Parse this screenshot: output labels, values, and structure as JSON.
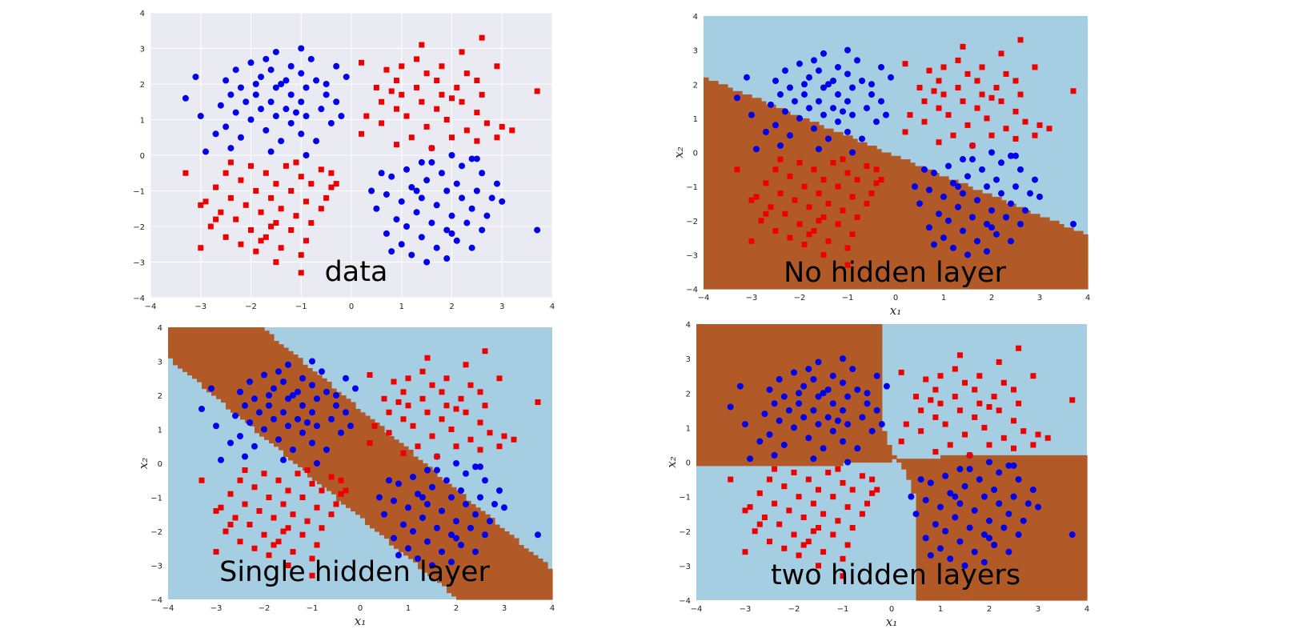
{
  "colors": {
    "class_a": "#0000ee",
    "class_b": "#ee0000",
    "region_a": "#a6cee3",
    "region_b": "#b15a28",
    "panel_bg": "#eaeaf2",
    "grid": "#ffffff"
  },
  "icons": {
    "class_a_marker": "circle-marker",
    "class_b_marker": "square-marker"
  },
  "chart_data": [
    {
      "type": "scatter",
      "caption": "data",
      "xlabel": "",
      "ylabel": "",
      "xlim": [
        -4,
        4
      ],
      "ylim": [
        -4,
        4
      ],
      "xticks": [
        "−4",
        "−3",
        "−2",
        "−1",
        "0",
        "1",
        "2",
        "3",
        "4"
      ],
      "yticks": [
        "−4",
        "−3",
        "−2",
        "−1",
        "0",
        "1",
        "2",
        "3",
        "4"
      ],
      "grid": true,
      "background": "seaborn-gray",
      "decision_boundary": "none"
    },
    {
      "type": "scatter",
      "caption": "No hidden layer",
      "xlabel": "x₁",
      "ylabel": "x₂",
      "xlim": [
        -4,
        4
      ],
      "ylim": [
        -4,
        4
      ],
      "xticks": [
        "−4",
        "−3",
        "−2",
        "−1",
        "0",
        "1",
        "2",
        "3",
        "4"
      ],
      "yticks": [
        "−4",
        "−3",
        "−2",
        "−1",
        "0",
        "1",
        "2",
        "3",
        "4"
      ],
      "grid": false,
      "decision_boundary": "linear"
    },
    {
      "type": "scatter",
      "caption": "Single hidden layer",
      "xlabel": "x₁",
      "ylabel": "x₂",
      "xlim": [
        -4,
        4
      ],
      "ylim": [
        -4,
        4
      ],
      "xticks": [
        "−4",
        "−3",
        "−2",
        "−1",
        "0",
        "1",
        "2",
        "3",
        "4"
      ],
      "yticks": [
        "−4",
        "−3",
        "−2",
        "−1",
        "0",
        "1",
        "2",
        "3",
        "4"
      ],
      "grid": false,
      "decision_boundary": "diagonal-band"
    },
    {
      "type": "scatter",
      "caption": "two hidden layers",
      "xlabel": "x₁",
      "ylabel": "x₂",
      "xlim": [
        -4,
        4
      ],
      "ylim": [
        -4,
        4
      ],
      "xticks": [
        "−4",
        "−3",
        "−2",
        "−1",
        "0",
        "1",
        "2",
        "3",
        "4"
      ],
      "yticks": [
        "−4",
        "−3",
        "−2",
        "−1",
        "0",
        "1",
        "2",
        "3",
        "4"
      ],
      "grid": false,
      "decision_boundary": "xor-quadrants"
    }
  ],
  "points": {
    "class_a_circles": [
      [
        -1.0,
        3.0
      ],
      [
        -1.5,
        2.9
      ],
      [
        -0.8,
        2.7
      ],
      [
        -2.0,
        2.6
      ],
      [
        -1.2,
        2.5
      ],
      [
        -0.3,
        2.5
      ],
      [
        -1.6,
        2.4
      ],
      [
        -2.3,
        2.4
      ],
      [
        -1.0,
        2.3
      ],
      [
        -2.5,
        2.1
      ],
      [
        -1.8,
        2.2
      ],
      [
        -1.3,
        2.1
      ],
      [
        -0.7,
        2.1
      ],
      [
        -2.2,
        1.9
      ],
      [
        -1.5,
        1.9
      ],
      [
        -0.9,
        1.9
      ],
      [
        -2.4,
        1.7
      ],
      [
        -1.9,
        1.7
      ],
      [
        -1.2,
        1.7
      ],
      [
        -0.5,
        1.7
      ],
      [
        -3.3,
        1.6
      ],
      [
        -2.1,
        1.5
      ],
      [
        -1.6,
        1.5
      ],
      [
        -1.0,
        1.5
      ],
      [
        -0.3,
        1.5
      ],
      [
        -2.6,
        1.4
      ],
      [
        -1.8,
        1.3
      ],
      [
        -1.3,
        1.3
      ],
      [
        -0.6,
        1.3
      ],
      [
        -2.3,
        1.2
      ],
      [
        -1.5,
        1.1
      ],
      [
        -0.9,
        1.1
      ],
      [
        -2.0,
        1.0
      ],
      [
        -1.2,
        0.9
      ],
      [
        -0.4,
        0.9
      ],
      [
        -2.5,
        0.8
      ],
      [
        -1.7,
        0.7
      ],
      [
        -1.0,
        0.6
      ],
      [
        -2.2,
        0.5
      ],
      [
        -1.4,
        0.4
      ],
      [
        -0.7,
        0.4
      ],
      [
        -2.4,
        0.2
      ],
      [
        -1.6,
        0.1
      ],
      [
        -0.9,
        0.0
      ],
      [
        -3.0,
        1.1
      ],
      [
        -3.1,
        2.2
      ],
      [
        -2.9,
        0.1
      ],
      [
        -1.9,
        2.0
      ],
      [
        -1.1,
        1.2
      ],
      [
        -0.2,
        1.1
      ],
      [
        -1.4,
        2.0
      ],
      [
        -2.7,
        0.6
      ],
      [
        -0.5,
        2.0
      ],
      [
        -1.7,
        2.7
      ],
      [
        -0.1,
        2.2
      ],
      [
        1.6,
        0.2
      ],
      [
        2.0,
        0.0
      ],
      [
        2.4,
        -0.1
      ],
      [
        1.4,
        -0.2
      ],
      [
        2.2,
        -0.3
      ],
      [
        1.1,
        -0.4
      ],
      [
        1.8,
        -0.5
      ],
      [
        2.6,
        -0.5
      ],
      [
        0.8,
        -0.6
      ],
      [
        1.5,
        -0.7
      ],
      [
        2.1,
        -0.8
      ],
      [
        2.9,
        -0.8
      ],
      [
        1.2,
        -0.9
      ],
      [
        1.9,
        -1.0
      ],
      [
        2.5,
        -1.0
      ],
      [
        0.7,
        -1.1
      ],
      [
        1.4,
        -1.2
      ],
      [
        2.2,
        -1.2
      ],
      [
        3.0,
        -1.3
      ],
      [
        1.0,
        -1.3
      ],
      [
        1.7,
        -1.4
      ],
      [
        2.4,
        -1.5
      ],
      [
        0.5,
        -1.5
      ],
      [
        1.3,
        -1.6
      ],
      [
        2.0,
        -1.7
      ],
      [
        2.7,
        -1.7
      ],
      [
        0.9,
        -1.8
      ],
      [
        1.6,
        -1.9
      ],
      [
        2.3,
        -1.9
      ],
      [
        1.1,
        -2.0
      ],
      [
        1.9,
        -2.1
      ],
      [
        2.6,
        -2.1
      ],
      [
        0.7,
        -2.2
      ],
      [
        1.4,
        -2.3
      ],
      [
        2.1,
        -2.4
      ],
      [
        1.0,
        -2.5
      ],
      [
        1.7,
        -2.6
      ],
      [
        2.4,
        -2.6
      ],
      [
        1.2,
        -2.8
      ],
      [
        1.9,
        -2.9
      ],
      [
        1.5,
        -3.0
      ],
      [
        3.7,
        -2.1
      ],
      [
        0.6,
        -0.5
      ],
      [
        2.8,
        -1.2
      ],
      [
        0.4,
        -1.0
      ],
      [
        1.6,
        -0.2
      ],
      [
        0.8,
        -2.7
      ],
      [
        2.0,
        -2.2
      ],
      [
        1.3,
        -1.0
      ],
      [
        2.5,
        -0.1
      ]
    ],
    "class_b_squares": [
      [
        1.4,
        3.1
      ],
      [
        2.6,
        3.3
      ],
      [
        2.2,
        2.9
      ],
      [
        0.2,
        2.6
      ],
      [
        1.0,
        2.5
      ],
      [
        1.8,
        2.5
      ],
      [
        2.9,
        2.5
      ],
      [
        0.7,
        2.4
      ],
      [
        1.5,
        2.3
      ],
      [
        2.3,
        2.3
      ],
      [
        0.9,
        2.1
      ],
      [
        1.7,
        2.1
      ],
      [
        2.5,
        2.1
      ],
      [
        0.5,
        1.9
      ],
      [
        1.3,
        1.9
      ],
      [
        2.1,
        1.9
      ],
      [
        3.7,
        1.8
      ],
      [
        1.0,
        1.7
      ],
      [
        1.8,
        1.7
      ],
      [
        2.6,
        1.7
      ],
      [
        0.6,
        1.5
      ],
      [
        1.4,
        1.5
      ],
      [
        2.2,
        1.5
      ],
      [
        0.9,
        1.3
      ],
      [
        1.7,
        1.3
      ],
      [
        2.5,
        1.2
      ],
      [
        0.3,
        1.1
      ],
      [
        1.1,
        1.1
      ],
      [
        1.9,
        1.0
      ],
      [
        2.7,
        0.9
      ],
      [
        0.6,
        0.9
      ],
      [
        1.5,
        0.8
      ],
      [
        2.3,
        0.7
      ],
      [
        3.0,
        0.8
      ],
      [
        0.2,
        0.6
      ],
      [
        1.2,
        0.5
      ],
      [
        2.0,
        0.5
      ],
      [
        2.9,
        0.5
      ],
      [
        0.9,
        0.3
      ],
      [
        1.6,
        0.2
      ],
      [
        3.2,
        0.7
      ],
      [
        2.5,
        0.4
      ],
      [
        1.3,
        2.7
      ],
      [
        2.0,
        1.6
      ],
      [
        0.8,
        1.8
      ],
      [
        -2.0,
        -0.3
      ],
      [
        -1.3,
        -0.3
      ],
      [
        -0.6,
        -0.4
      ],
      [
        -2.5,
        -0.5
      ],
      [
        -1.7,
        -0.5
      ],
      [
        -1.0,
        -0.6
      ],
      [
        -3.3,
        -0.5
      ],
      [
        -2.2,
        -0.7
      ],
      [
        -1.5,
        -0.8
      ],
      [
        -0.8,
        -0.8
      ],
      [
        -2.7,
        -0.9
      ],
      [
        -1.9,
        -1.0
      ],
      [
        -1.2,
        -1.0
      ],
      [
        -0.4,
        -0.9
      ],
      [
        -2.4,
        -1.2
      ],
      [
        -1.6,
        -1.2
      ],
      [
        -0.9,
        -1.3
      ],
      [
        -3.0,
        -1.4
      ],
      [
        -2.1,
        -1.4
      ],
      [
        -1.4,
        -1.5
      ],
      [
        -0.6,
        -1.5
      ],
      [
        -2.6,
        -1.6
      ],
      [
        -1.8,
        -1.6
      ],
      [
        -1.1,
        -1.7
      ],
      [
        -2.3,
        -1.8
      ],
      [
        -1.5,
        -1.9
      ],
      [
        -0.8,
        -1.9
      ],
      [
        -2.8,
        -2.0
      ],
      [
        -2.0,
        -2.1
      ],
      [
        -1.2,
        -2.1
      ],
      [
        -2.5,
        -2.3
      ],
      [
        -1.7,
        -2.3
      ],
      [
        -0.9,
        -2.4
      ],
      [
        -2.2,
        -2.5
      ],
      [
        -1.4,
        -2.6
      ],
      [
        -3.0,
        -2.6
      ],
      [
        -1.9,
        -2.7
      ],
      [
        -1.0,
        -2.8
      ],
      [
        -1.5,
        -3.0
      ],
      [
        -1.0,
        -3.3
      ],
      [
        -0.4,
        -0.5
      ],
      [
        -2.9,
        -1.3
      ],
      [
        -1.6,
        -2.0
      ],
      [
        -0.5,
        -1.2
      ],
      [
        -2.4,
        -0.2
      ],
      [
        -1.1,
        -0.2
      ],
      [
        -0.3,
        -0.8
      ],
      [
        -1.8,
        -2.4
      ],
      [
        -2.7,
        -1.8
      ]
    ]
  }
}
